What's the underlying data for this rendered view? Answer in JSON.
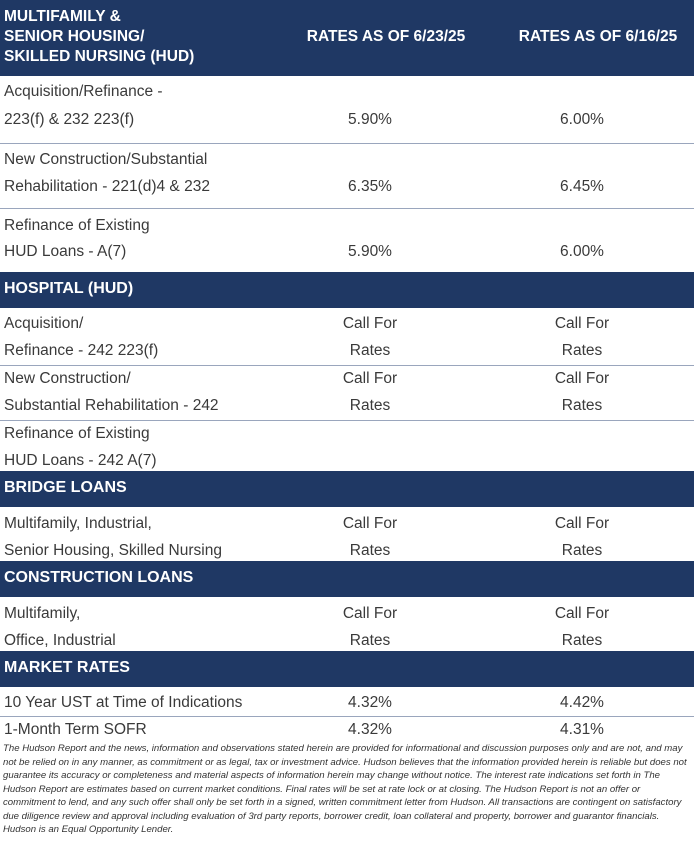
{
  "header": {
    "col1_line1": "MULTIFAMILY &",
    "col1_line2": "SENIOR HOUSING/",
    "col1_line3": "SKILLED NURSING (HUD)",
    "col2": "RATES AS OF 6/23/25",
    "col3": "RATES AS OF 6/16/25"
  },
  "multifamily": {
    "rows": [
      {
        "line1": "Acquisition/Refinance -",
        "line2": "223(f) & 232 223(f)",
        "current": "5.90%",
        "previous": "6.00%"
      },
      {
        "line1": "New Construction/Substantial",
        "line2": "Rehabilitation - 221(d)4 & 232",
        "current": "6.35%",
        "previous": "6.45%"
      },
      {
        "line1": "Refinance of Existing",
        "line2": "HUD Loans - A(7)",
        "current": "5.90%",
        "previous": "6.00%"
      }
    ]
  },
  "hospital": {
    "title": "HOSPITAL (HUD)",
    "rows": [
      {
        "line1": "Acquisition/",
        "line2": "Refinance - 242 223(f)",
        "current1": "Call For",
        "current2": "Rates",
        "previous1": "Call For",
        "previous2": "Rates"
      },
      {
        "line1": "New Construction/",
        "line2": "Substantial Rehabilitation - 242",
        "current1": "Call For",
        "current2": "Rates",
        "previous1": "Call For",
        "previous2": "Rates"
      },
      {
        "line1": "Refinance of Existing",
        "line2": "HUD Loans - 242 A(7)"
      }
    ]
  },
  "bridge": {
    "title": "BRIDGE LOANS",
    "row": {
      "line1": "Multifamily, Industrial,",
      "line2": "Senior Housing, Skilled Nursing",
      "current1": "Call For",
      "current2": "Rates",
      "previous1": "Call For",
      "previous2": "Rates"
    }
  },
  "construction": {
    "title": "CONSTRUCTION LOANS",
    "row": {
      "line1": "Multifamily,",
      "line2": "Office, Industrial",
      "current1": "Call For",
      "current2": "Rates",
      "previous1": "Call For",
      "previous2": "Rates"
    }
  },
  "market": {
    "title": "MARKET RATES",
    "rows": [
      {
        "label": "10 Year UST at Time of Indications",
        "current": "4.32%",
        "previous": "4.42%"
      },
      {
        "label": "1-Month Term SOFR",
        "current": "4.32%",
        "previous": "4.31%"
      }
    ]
  },
  "disclaimer": "The Hudson Report and the news, information and observations stated herein are provided for informational and discussion purposes only and are not, and may not be relied on in any manner, as commitment or as legal, tax or investment advice. Hudson believes that the information provided herein is reliable but does not guarantee its accuracy or completeness and material aspects of information herein may change without notice. The interest rate indications set forth in The Hudson Report are estimates based on current market conditions. Final rates will be set at rate lock or at closing. The Hudson Report is not an offer or commitment to lend, and any such offer shall only be set forth in a signed, written commitment letter from Hudson. All transactions are contingent on satisfactory due diligence review and approval including evaluation of 3rd party reports, borrower credit, loan collateral and property, borrower and guarantor financials. Hudson is an Equal Opportunity Lender."
}
